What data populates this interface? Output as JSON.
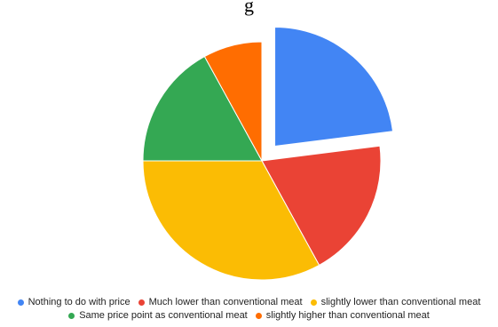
{
  "title_fragment": "g",
  "chart_data": {
    "type": "pie",
    "exploded_slice": "Nothing to do with price",
    "legend_position": "bottom",
    "slices": [
      {
        "label": "Nothing to do with price",
        "value": 23,
        "color": "#4285F4"
      },
      {
        "label": "Much lower than conventional meat",
        "value": 19,
        "color": "#EA4335"
      },
      {
        "label": "slightly lower than conventional meat",
        "value": 33,
        "color": "#FBBC04"
      },
      {
        "label": "Same price point as conventional meat",
        "value": 17,
        "color": "#34A853"
      },
      {
        "label": "slightly higher than conventional meat",
        "value": 8,
        "color": "#FF6D01"
      }
    ]
  }
}
